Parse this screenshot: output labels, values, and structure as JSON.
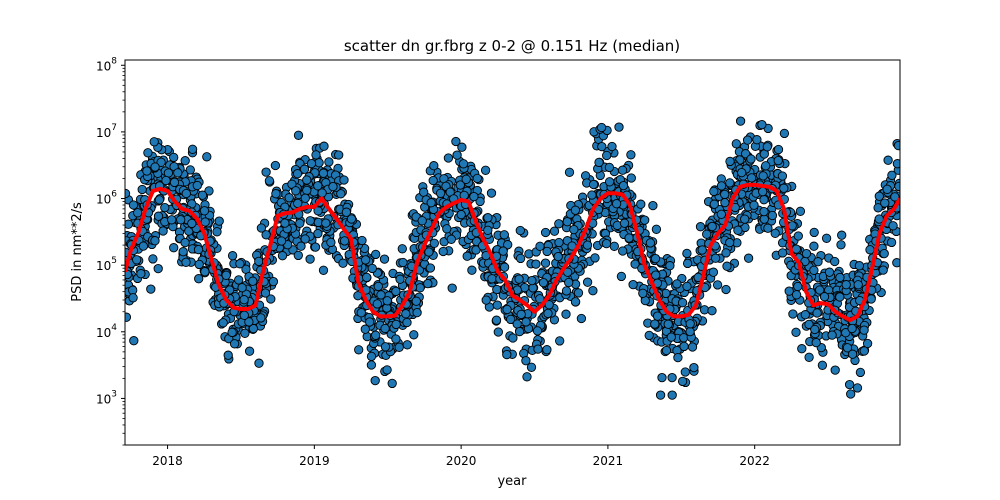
{
  "chart_data": {
    "type": "scatter",
    "title": "scatter dn gr.fbrg z 0-2 @ 0.151 Hz (median)",
    "xlabel": "year",
    "ylabel": "PSD in nm**2/s",
    "yscale": "log",
    "xlim": [
      2017.71,
      2022.99
    ],
    "ylim": [
      200,
      120000000
    ],
    "x_ticks": [
      {
        "value": 2018,
        "label": "2018"
      },
      {
        "value": 2019,
        "label": "2019"
      },
      {
        "value": 2020,
        "label": "2020"
      },
      {
        "value": 2021,
        "label": "2021"
      },
      {
        "value": 2022,
        "label": "2022"
      }
    ],
    "y_ticks": [
      {
        "value": 1000,
        "base": "10",
        "exp": "3"
      },
      {
        "value": 10000,
        "base": "10",
        "exp": "4"
      },
      {
        "value": 100000,
        "base": "10",
        "exp": "5"
      },
      {
        "value": 1000000,
        "base": "10",
        "exp": "6"
      },
      {
        "value": 10000000,
        "base": "10",
        "exp": "7"
      },
      {
        "value": 100000000,
        "base": "10",
        "exp": "8"
      }
    ],
    "grid": false,
    "legend": "none",
    "colors": {
      "scatter_fill": "#1f77b4",
      "scatter_edge": "#000000",
      "median_line": "#ff0000"
    },
    "median_series": {
      "x": [
        2017.71,
        2017.75,
        2017.8,
        2017.85,
        2017.9,
        2017.95,
        2018.0,
        2018.05,
        2018.1,
        2018.15,
        2018.2,
        2018.25,
        2018.3,
        2018.35,
        2018.4,
        2018.45,
        2018.5,
        2018.55,
        2018.6,
        2018.65,
        2018.7,
        2018.75,
        2018.8,
        2018.85,
        2018.9,
        2018.95,
        2019.0,
        2019.05,
        2019.1,
        2019.15,
        2019.2,
        2019.25,
        2019.3,
        2019.35,
        2019.4,
        2019.45,
        2019.5,
        2019.55,
        2019.6,
        2019.65,
        2019.7,
        2019.75,
        2019.8,
        2019.85,
        2019.9,
        2019.95,
        2020.0,
        2020.05,
        2020.1,
        2020.15,
        2020.2,
        2020.25,
        2020.3,
        2020.35,
        2020.4,
        2020.45,
        2020.5,
        2020.55,
        2020.6,
        2020.65,
        2020.7,
        2020.75,
        2020.8,
        2020.85,
        2020.9,
        2020.95,
        2021.0,
        2021.05,
        2021.1,
        2021.15,
        2021.2,
        2021.25,
        2021.3,
        2021.35,
        2021.4,
        2021.45,
        2021.5,
        2021.55,
        2021.6,
        2021.65,
        2021.7,
        2021.75,
        2021.8,
        2021.85,
        2021.9,
        2021.95,
        2022.0,
        2022.05,
        2022.1,
        2022.15,
        2022.2,
        2022.25,
        2022.3,
        2022.35,
        2022.4,
        2022.45,
        2022.5,
        2022.55,
        2022.6,
        2022.65,
        2022.7,
        2022.75,
        2022.8,
        2022.85,
        2022.9,
        2022.95,
        2022.99
      ],
      "y": [
        80000,
        170000,
        300000,
        700000,
        1300000,
        1400000,
        1300000,
        900000,
        700000,
        650000,
        500000,
        300000,
        120000,
        50000,
        30000,
        23000,
        22000,
        22000,
        25000,
        80000,
        200000,
        550000,
        600000,
        620000,
        700000,
        750000,
        750000,
        1000000,
        700000,
        500000,
        350000,
        250000,
        55000,
        30000,
        20000,
        17000,
        17000,
        17500,
        25000,
        40000,
        110000,
        200000,
        350000,
        600000,
        750000,
        850000,
        950000,
        900000,
        450000,
        250000,
        150000,
        80000,
        60000,
        35000,
        30000,
        25000,
        20000,
        25000,
        35000,
        60000,
        90000,
        130000,
        200000,
        350000,
        700000,
        1000000,
        1200000,
        1200000,
        1150000,
        800000,
        300000,
        100000,
        55000,
        30000,
        20000,
        17000,
        17000,
        18000,
        25000,
        70000,
        200000,
        300000,
        400000,
        1000000,
        1500000,
        1600000,
        1600000,
        1550000,
        1500000,
        1300000,
        700000,
        150000,
        110000,
        40000,
        25000,
        27000,
        26000,
        20000,
        17000,
        15000,
        17000,
        30000,
        90000,
        300000,
        550000,
        700000,
        1000000
      ]
    }
  }
}
